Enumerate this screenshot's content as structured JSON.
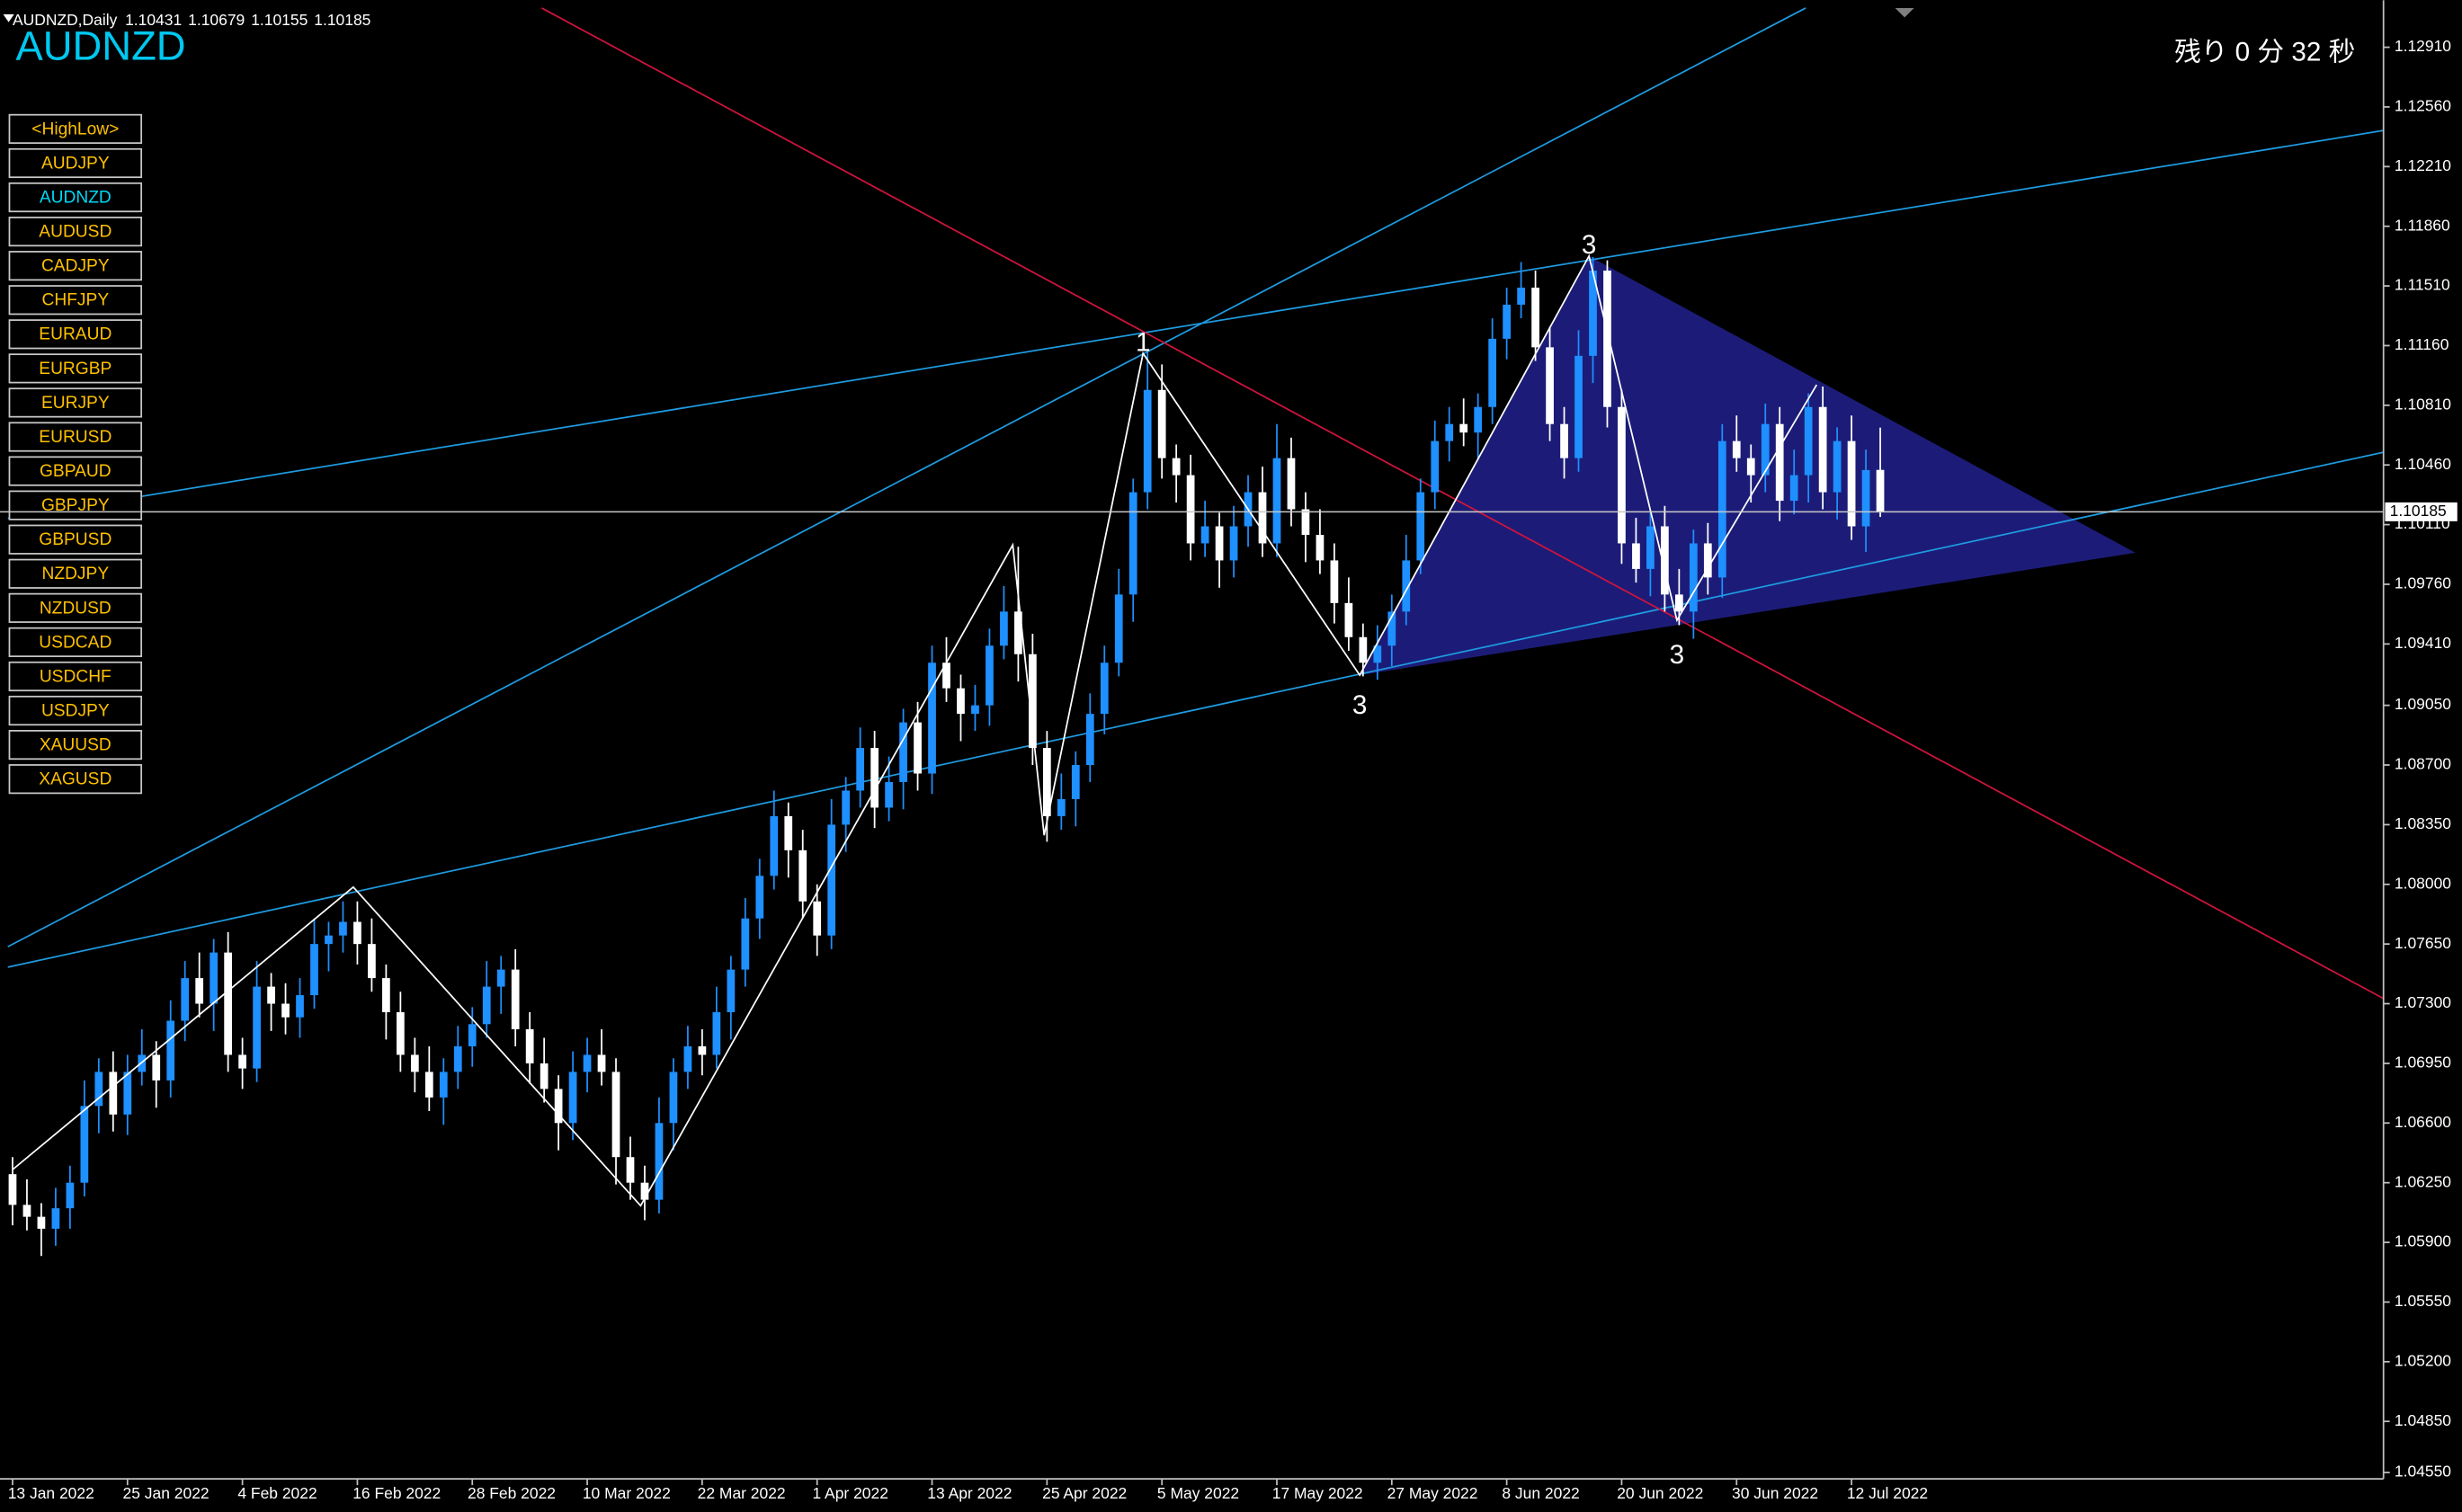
{
  "symbol_buttons": [
    "<HighLow>",
    "AUDJPY",
    "AUDNZD",
    "AUDUSD",
    "CADJPY",
    "CHFJPY",
    "EURAUD",
    "EURGBP",
    "EURJPY",
    "EURUSD",
    "GBPAUD",
    "GBPJPY",
    "GBPUSD",
    "NZDJPY",
    "NZDUSD",
    "USDCAD",
    "USDCHF",
    "USDJPY",
    "XAUUSD",
    "XAGUSD"
  ],
  "active_symbol": "AUDNZD",
  "chart_data": {
    "type": "candlestick",
    "title": "AUDNZD",
    "subtitle": "AUDNZD,Daily",
    "countdown": "残り 0 分 32 秒",
    "annotations": [
      "1",
      "3",
      "3",
      "3"
    ],
    "up_color": "#1e90ff",
    "down_color": "#ffffff",
    "categories": [
      "13 Jan 2022",
      null,
      null,
      null,
      null,
      null,
      null,
      null,
      "25 Jan 2022",
      null,
      null,
      null,
      null,
      null,
      null,
      null,
      "4 Feb 2022",
      null,
      null,
      null,
      null,
      null,
      null,
      null,
      "16 Feb 2022",
      null,
      null,
      null,
      null,
      null,
      null,
      null,
      "28 Feb 2022",
      null,
      null,
      null,
      null,
      null,
      null,
      null,
      "10 Mar 2022",
      null,
      null,
      null,
      null,
      null,
      null,
      null,
      "22 Mar 2022",
      null,
      null,
      null,
      null,
      null,
      null,
      null,
      "1 Apr 2022",
      null,
      null,
      null,
      null,
      null,
      null,
      null,
      "13 Apr 2022",
      null,
      null,
      null,
      null,
      null,
      null,
      null,
      "25 Apr 2022",
      null,
      null,
      null,
      null,
      null,
      null,
      null,
      "5 May 2022",
      null,
      null,
      null,
      null,
      null,
      null,
      null,
      "17 May 2022",
      null,
      null,
      null,
      null,
      null,
      null,
      null,
      "27 May 2022",
      null,
      null,
      null,
      null,
      null,
      null,
      null,
      "8 Jun 2022",
      null,
      null,
      null,
      null,
      null,
      null,
      null,
      "20 Jun 2022",
      null,
      null,
      null,
      null,
      null,
      null,
      null,
      "30 Jun 2022",
      null,
      null,
      null,
      null,
      null,
      null,
      null,
      "12 Jul 2022",
      null,
      null
    ],
    "ohlc": [
      [
        1.063,
        1.064,
        1.06,
        1.0612
      ],
      [
        1.0612,
        1.0627,
        1.0597,
        1.0605
      ],
      [
        1.0605,
        1.0613,
        1.0582,
        1.0598
      ],
      [
        1.0598,
        1.0622,
        1.0588,
        1.061
      ],
      [
        1.061,
        1.0635,
        1.0598,
        1.0625
      ],
      [
        1.0625,
        1.0685,
        1.0617,
        1.067
      ],
      [
        1.067,
        1.0698,
        1.0654,
        1.069
      ],
      [
        1.069,
        1.0702,
        1.0655,
        1.0665
      ],
      [
        1.0665,
        1.07,
        1.0653,
        1.069
      ],
      [
        1.069,
        1.0715,
        1.0682,
        1.07
      ],
      [
        1.07,
        1.0708,
        1.0669,
        1.0685
      ],
      [
        1.0685,
        1.0732,
        1.0675,
        1.072
      ],
      [
        1.072,
        1.0755,
        1.0708,
        1.0745
      ],
      [
        1.0745,
        1.076,
        1.0722,
        1.073
      ],
      [
        1.073,
        1.0768,
        1.0714,
        1.076
      ],
      [
        1.076,
        1.0772,
        1.069,
        1.07
      ],
      [
        1.07,
        1.071,
        1.068,
        1.0692
      ],
      [
        1.0692,
        1.0755,
        1.0684,
        1.074
      ],
      [
        1.074,
        1.0748,
        1.0714,
        1.073
      ],
      [
        1.073,
        1.0742,
        1.0712,
        1.0722
      ],
      [
        1.0722,
        1.0745,
        1.071,
        1.0735
      ],
      [
        1.0735,
        1.078,
        1.0727,
        1.0765
      ],
      [
        1.0765,
        1.0778,
        1.0749,
        1.077
      ],
      [
        1.077,
        1.079,
        1.076,
        1.0778
      ],
      [
        1.0778,
        1.079,
        1.0753,
        1.0765
      ],
      [
        1.0765,
        1.078,
        1.0737,
        1.0745
      ],
      [
        1.0745,
        1.0753,
        1.0709,
        1.0725
      ],
      [
        1.0725,
        1.0737,
        1.069,
        1.07
      ],
      [
        1.07,
        1.071,
        1.0678,
        1.069
      ],
      [
        1.069,
        1.0705,
        1.0667,
        1.0675
      ],
      [
        1.0675,
        1.0698,
        1.0659,
        1.069
      ],
      [
        1.069,
        1.0717,
        1.068,
        1.0705
      ],
      [
        1.0705,
        1.0728,
        1.0693,
        1.0718
      ],
      [
        1.0718,
        1.0755,
        1.071,
        1.074
      ],
      [
        1.074,
        1.0758,
        1.0724,
        1.075
      ],
      [
        1.075,
        1.0762,
        1.0705,
        1.0715
      ],
      [
        1.0715,
        1.0725,
        1.0683,
        1.0695
      ],
      [
        1.0695,
        1.071,
        1.0672,
        1.068
      ],
      [
        1.068,
        1.0688,
        1.0644,
        1.066
      ],
      [
        1.066,
        1.0702,
        1.065,
        1.069
      ],
      [
        1.069,
        1.071,
        1.0678,
        1.07
      ],
      [
        1.07,
        1.0715,
        1.0682,
        1.069
      ],
      [
        1.069,
        1.0698,
        1.0624,
        1.064
      ],
      [
        1.064,
        1.0652,
        1.0615,
        1.0625
      ],
      [
        1.0625,
        1.0635,
        1.0603,
        1.0615
      ],
      [
        1.0615,
        1.0675,
        1.0607,
        1.066
      ],
      [
        1.066,
        1.0698,
        1.0644,
        1.069
      ],
      [
        1.069,
        1.0717,
        1.068,
        1.0705
      ],
      [
        1.0705,
        1.0715,
        1.0688,
        1.07
      ],
      [
        1.07,
        1.074,
        1.0692,
        1.0725
      ],
      [
        1.0725,
        1.0758,
        1.0709,
        1.075
      ],
      [
        1.075,
        1.0792,
        1.074,
        1.078
      ],
      [
        1.078,
        1.0815,
        1.0768,
        1.0805
      ],
      [
        1.0805,
        1.0855,
        1.0797,
        1.084
      ],
      [
        1.084,
        1.0848,
        1.0804,
        1.082
      ],
      [
        1.082,
        1.0832,
        1.078,
        1.079
      ],
      [
        1.079,
        1.08,
        1.0758,
        1.077
      ],
      [
        1.077,
        1.085,
        1.0762,
        1.0835
      ],
      [
        1.0835,
        1.0863,
        1.0819,
        1.0855
      ],
      [
        1.0855,
        1.0892,
        1.0845,
        1.088
      ],
      [
        1.088,
        1.089,
        1.0833,
        1.0845
      ],
      [
        1.0845,
        1.0875,
        1.0837,
        1.086
      ],
      [
        1.086,
        1.0903,
        1.0844,
        1.0895
      ],
      [
        1.0895,
        1.0907,
        1.0855,
        1.0865
      ],
      [
        1.0865,
        1.094,
        1.0853,
        1.093
      ],
      [
        1.093,
        1.0945,
        1.0907,
        1.0915
      ],
      [
        1.0915,
        1.0923,
        1.0884,
        1.09
      ],
      [
        1.09,
        1.0917,
        1.089,
        1.0905
      ],
      [
        1.0905,
        1.095,
        1.0893,
        1.094
      ],
      [
        1.094,
        1.0975,
        1.0932,
        1.096
      ],
      [
        1.096,
        1.0998,
        1.0919,
        1.0935
      ],
      [
        1.0935,
        1.0947,
        1.087,
        1.088
      ],
      [
        1.088,
        1.089,
        1.0825,
        1.084
      ],
      [
        1.084,
        1.0865,
        1.0832,
        1.085
      ],
      [
        1.085,
        1.0878,
        1.0834,
        1.087
      ],
      [
        1.087,
        1.0912,
        1.086,
        1.09
      ],
      [
        1.09,
        1.094,
        1.0888,
        1.093
      ],
      [
        1.093,
        1.0985,
        1.0922,
        1.097
      ],
      [
        1.097,
        1.1038,
        1.0954,
        1.103
      ],
      [
        1.103,
        1.1112,
        1.102,
        1.109
      ],
      [
        1.109,
        1.1105,
        1.1038,
        1.105
      ],
      [
        1.105,
        1.1058,
        1.1024,
        1.104
      ],
      [
        1.104,
        1.1052,
        1.099,
        1.1
      ],
      [
        1.1,
        1.1025,
        1.0992,
        1.101
      ],
      [
        1.101,
        1.1018,
        1.0974,
        1.099
      ],
      [
        1.099,
        1.1022,
        1.098,
        1.101
      ],
      [
        1.101,
        1.104,
        1.0998,
        1.103
      ],
      [
        1.103,
        1.1045,
        1.0992,
        1.1
      ],
      [
        1.1,
        1.107,
        1.0992,
        1.105
      ],
      [
        1.105,
        1.1062,
        1.101,
        1.102
      ],
      [
        1.102,
        1.103,
        1.0989,
        1.1005
      ],
      [
        1.1005,
        1.102,
        1.0982,
        1.099
      ],
      [
        1.099,
        1.1,
        1.0953,
        1.0965
      ],
      [
        1.0965,
        1.098,
        1.0937,
        1.0945
      ],
      [
        1.0945,
        1.0953,
        1.0922,
        1.093
      ],
      [
        1.093,
        1.0952,
        1.092,
        1.094
      ],
      [
        1.094,
        1.097,
        1.0928,
        1.096
      ],
      [
        1.096,
        1.1005,
        1.0952,
        1.099
      ],
      [
        1.099,
        1.1038,
        1.0982,
        1.103
      ],
      [
        1.103,
        1.1072,
        1.102,
        1.106
      ],
      [
        1.106,
        1.108,
        1.1048,
        1.107
      ],
      [
        1.107,
        1.1085,
        1.1057,
        1.1065
      ],
      [
        1.1065,
        1.1088,
        1.1049,
        1.108
      ],
      [
        1.108,
        1.1132,
        1.107,
        1.112
      ],
      [
        1.112,
        1.115,
        1.1108,
        1.114
      ],
      [
        1.114,
        1.1165,
        1.1132,
        1.115
      ],
      [
        1.115,
        1.116,
        1.1107,
        1.1115
      ],
      [
        1.1115,
        1.1127,
        1.106,
        1.107
      ],
      [
        1.107,
        1.108,
        1.1038,
        1.105
      ],
      [
        1.105,
        1.1125,
        1.1042,
        1.111
      ],
      [
        1.111,
        1.1168,
        1.1094,
        1.116
      ],
      [
        1.116,
        1.1166,
        1.1068,
        1.108
      ],
      [
        1.108,
        1.109,
        1.0988,
        1.1
      ],
      [
        1.1,
        1.1015,
        1.0977,
        1.0985
      ],
      [
        1.0985,
        1.1018,
        1.0969,
        1.101
      ],
      [
        1.101,
        1.1022,
        1.096,
        1.097
      ],
      [
        1.097,
        1.0985,
        1.0952,
        1.096
      ],
      [
        1.096,
        1.1008,
        1.0944,
        1.1
      ],
      [
        1.1,
        1.1012,
        1.097,
        1.098
      ],
      [
        1.098,
        1.107,
        1.0968,
        1.106
      ],
      [
        1.106,
        1.1075,
        1.1042,
        1.105
      ],
      [
        1.105,
        1.1058,
        1.1024,
        1.104
      ],
      [
        1.104,
        1.1082,
        1.103,
        1.107
      ],
      [
        1.107,
        1.108,
        1.1013,
        1.1025
      ],
      [
        1.1025,
        1.1055,
        1.1017,
        1.104
      ],
      [
        1.104,
        1.1088,
        1.1024,
        1.108
      ],
      [
        1.108,
        1.1092,
        1.102,
        1.103
      ],
      [
        1.103,
        1.1068,
        1.1014,
        1.106
      ],
      [
        1.106,
        1.1075,
        1.1002,
        1.101
      ],
      [
        1.101,
        1.1055,
        1.0995,
        1.1043
      ],
      [
        1.10431,
        1.10679,
        1.10155,
        1.10185
      ]
    ],
    "ylim": [
      1.04513,
      1.13186
    ],
    "yticks": [
      {
        "value": 1.1291,
        "label": "1.12910"
      },
      {
        "value": 1.1256,
        "label": "1.12560"
      },
      {
        "value": 1.1221,
        "label": "1.12210"
      },
      {
        "value": 1.1186,
        "label": "1.11860"
      },
      {
        "value": 1.1151,
        "label": "1.11510"
      },
      {
        "value": 1.1116,
        "label": "1.11160"
      },
      {
        "value": 1.1081,
        "label": "1.10810"
      },
      {
        "value": 1.1046,
        "label": "1.10460"
      },
      {
        "value": 1.1011,
        "label": "1.10110"
      },
      {
        "value": 1.0976,
        "label": "1.09760"
      },
      {
        "value": 1.0941,
        "label": "1.09410"
      },
      {
        "value": 1.0905,
        "label": "1.09050"
      },
      {
        "value": 1.087,
        "label": "1.08700"
      },
      {
        "value": 1.0835,
        "label": "1.08350"
      },
      {
        "value": 1.08,
        "label": "1.08000"
      },
      {
        "value": 1.0765,
        "label": "1.07650"
      },
      {
        "value": 1.073,
        "label": "1.07300"
      },
      {
        "value": 1.0695,
        "label": "1.06950"
      },
      {
        "value": 1.066,
        "label": "1.06600"
      },
      {
        "value": 1.0625,
        "label": "1.06250"
      },
      {
        "value": 1.059,
        "label": "1.05900"
      },
      {
        "value": 1.0555,
        "label": "1.05550"
      },
      {
        "value": 1.052,
        "label": "1.05200"
      },
      {
        "value": 1.0485,
        "label": "1.04850"
      },
      {
        "value": 1.0455,
        "label": "1.04550"
      }
    ]
  }
}
